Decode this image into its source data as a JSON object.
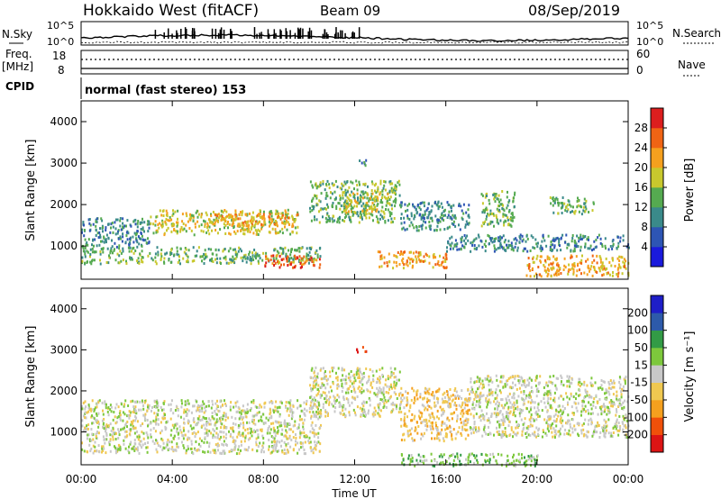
{
  "header": {
    "radar_title": "Hokkaido West (fitACF)",
    "beam": "Beam 09",
    "date": "08/Sep/2019"
  },
  "noise_panel": {
    "left_label": "N.Sky",
    "right_label": "N.Search",
    "ticks": [
      "10^5",
      "10^0"
    ]
  },
  "freq_panel": {
    "left_label": "Freq.",
    "left_unit": "[MHz]",
    "right_label": "Nave",
    "left_ticks": [
      "18",
      "8"
    ],
    "right_ticks": [
      "60",
      "0"
    ]
  },
  "cpid": {
    "label": "CPID",
    "value": "normal (fast stereo) 153"
  },
  "colors": {
    "power_scale": [
      "#1a1adc",
      "#2d55b4",
      "#3a8a8a",
      "#55aa50",
      "#c8c82d",
      "#f5a01e",
      "#f06414",
      "#dc1e1e"
    ],
    "velocity_scale": [
      "#dc1414",
      "#f0500a",
      "#f5a01e",
      "#f0c850",
      "#c8c8c8",
      "#7dc83c",
      "#329b46",
      "#2d5aaa",
      "#1e1ec8"
    ]
  },
  "chart_data": [
    {
      "type": "heatmap",
      "quantity": "Power",
      "ylabel": "Slant Range [km]",
      "yticks": [
        "1000",
        "2000",
        "3000",
        "4000"
      ],
      "ylim": [
        200,
        4500
      ],
      "xlim": [
        0,
        24
      ],
      "colorbar": {
        "label": "Power [dB]",
        "ticks": [
          "4",
          "8",
          "12",
          "16",
          "20",
          "24",
          "28"
        ],
        "range": [
          0,
          32
        ]
      },
      "echo_regions": [
        {
          "t0": 0.0,
          "t1": 10.5,
          "r0": 600,
          "r1": 1000,
          "level": 3
        },
        {
          "t0": 0.0,
          "t1": 3.0,
          "r0": 1000,
          "r1": 1700,
          "level": 2
        },
        {
          "t0": 3.0,
          "t1": 9.5,
          "r0": 1300,
          "r1": 1900,
          "level": 4
        },
        {
          "t0": 5.5,
          "t1": 9.5,
          "r0": 1500,
          "r1": 1800,
          "level": 5
        },
        {
          "t0": 8.0,
          "t1": 10.5,
          "r0": 500,
          "r1": 800,
          "level": 6
        },
        {
          "t0": 10.0,
          "t1": 14.0,
          "r0": 1600,
          "r1": 2600,
          "level": 3
        },
        {
          "t0": 11.5,
          "t1": 13.5,
          "r0": 1800,
          "r1": 2300,
          "level": 4
        },
        {
          "t0": 13.0,
          "t1": 16.0,
          "r0": 500,
          "r1": 900,
          "level": 5
        },
        {
          "t0": 14.0,
          "t1": 17.0,
          "r0": 1400,
          "r1": 2100,
          "level": 2
        },
        {
          "t0": 17.5,
          "t1": 19.0,
          "r0": 1500,
          "r1": 2400,
          "level": 3
        },
        {
          "t0": 16.0,
          "t1": 24.0,
          "r0": 900,
          "r1": 1300,
          "level": 2
        },
        {
          "t0": 20.5,
          "t1": 22.5,
          "r0": 1800,
          "r1": 2200,
          "level": 3
        },
        {
          "t0": 19.5,
          "t1": 24.0,
          "r0": 300,
          "r1": 800,
          "level": 5
        },
        {
          "t0": 12.0,
          "t1": 12.5,
          "r0": 2950,
          "r1": 3100,
          "level": 2
        }
      ]
    },
    {
      "type": "heatmap",
      "quantity": "Velocity",
      "ylabel": "Slant Range [km]",
      "yticks": [
        "1000",
        "2000",
        "3000",
        "4000"
      ],
      "ylim": [
        200,
        4500
      ],
      "xlim": [
        0,
        24
      ],
      "xlabel": "Time UT",
      "xticks": [
        "00:00",
        "04:00",
        "08:00",
        "12:00",
        "16:00",
        "20:00",
        "00:00"
      ],
      "colorbar": {
        "label": "Velocity [m s⁻¹]",
        "ticks": [
          "200",
          "100",
          "50",
          "15",
          "-15",
          "-50",
          "-100",
          "-200"
        ],
        "range": [
          -300,
          300
        ]
      },
      "echo_regions": [
        {
          "t0": 0.0,
          "t1": 10.5,
          "r0": 500,
          "r1": 1800,
          "level": 4
        },
        {
          "t0": 10.0,
          "t1": 14.0,
          "r0": 1400,
          "r1": 2600,
          "level": 4
        },
        {
          "t0": 14.0,
          "t1": 17.0,
          "r0": 800,
          "r1": 2100,
          "level": 3
        },
        {
          "t0": 17.0,
          "t1": 24.0,
          "r0": 900,
          "r1": 2400,
          "level": 4
        },
        {
          "t0": 12.0,
          "t1": 12.5,
          "r0": 2950,
          "r1": 3100,
          "level": 0
        },
        {
          "t0": 14.0,
          "t1": 20.0,
          "r0": 200,
          "r1": 500,
          "level": 5
        }
      ]
    }
  ]
}
